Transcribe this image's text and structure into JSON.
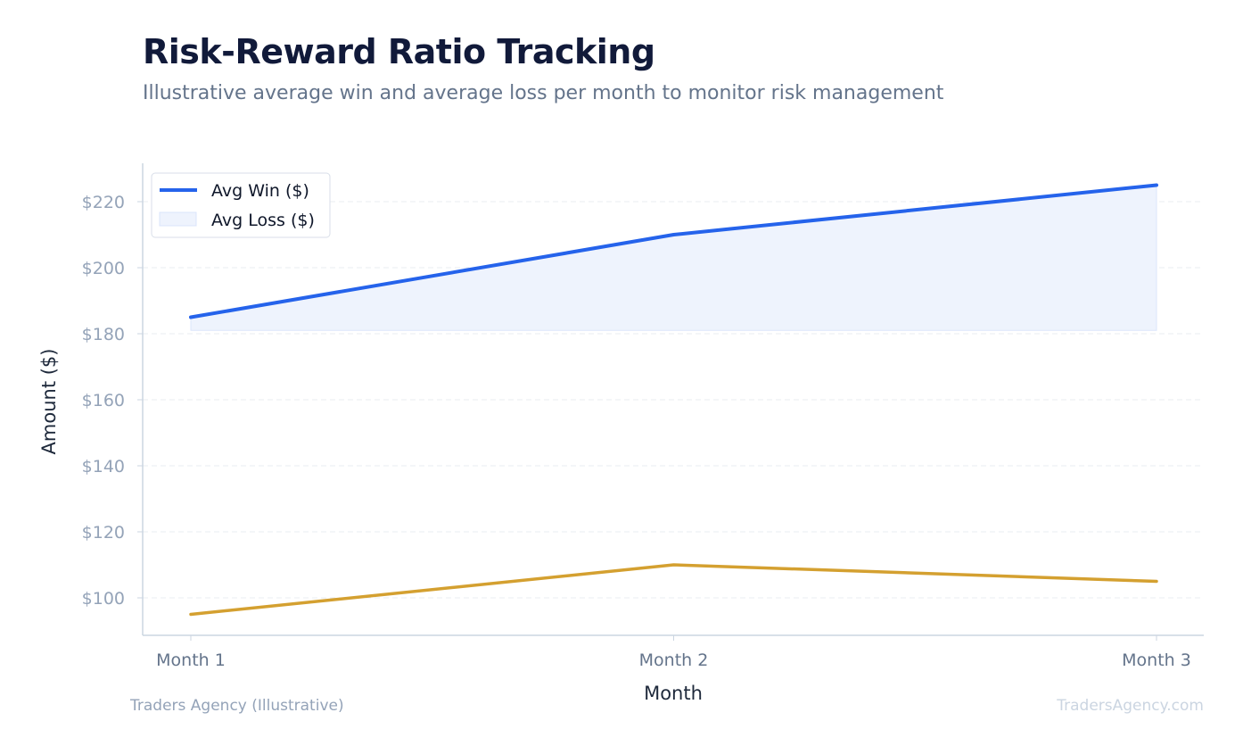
{
  "chart_data": {
    "type": "line",
    "title": "Risk-Reward Ratio Tracking",
    "subtitle": "Illustrative average win and average loss per month to monitor risk management",
    "xlabel": "Month",
    "ylabel": "Amount ($)",
    "categories": [
      "Month 1",
      "Month 2",
      "Month 3"
    ],
    "ylim": [
      90,
      232
    ],
    "yticks": [
      100,
      120,
      140,
      160,
      180,
      200,
      220
    ],
    "ytick_labels": [
      "$100",
      "$120",
      "$140",
      "$160",
      "$180",
      "$200",
      "$220"
    ],
    "grid": true,
    "legend_position": "top-left",
    "series": [
      {
        "name": "Avg Win ($)",
        "values": [
          185,
          210,
          225
        ],
        "color": "#2563eb",
        "style": "line"
      },
      {
        "name": "Avg Loss ($)",
        "values": [
          95,
          110,
          105
        ],
        "color": "#d4a030",
        "style": "line"
      }
    ],
    "shaded_band": {
      "from": 181,
      "to_series": "Avg Win ($)",
      "color": "#eef3fd",
      "legend_entry": "Avg Loss ($)"
    }
  },
  "footer": {
    "left": "Traders Agency (Illustrative)",
    "right": "TradersAgency.com"
  }
}
